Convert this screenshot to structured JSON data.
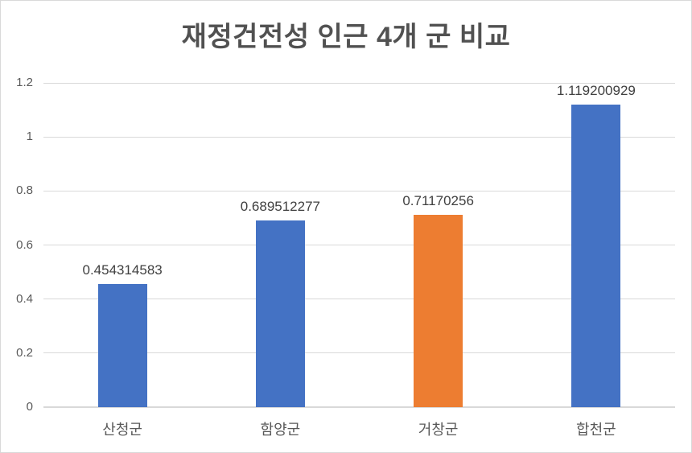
{
  "chart_data": {
    "type": "bar",
    "title": "재정건전성 인근 4개 군 비교",
    "categories": [
      "산청군",
      "함양군",
      "거창군",
      "합천군"
    ],
    "values": [
      0.454314583,
      0.689512277,
      0.71170256,
      1.119200929
    ],
    "data_labels": [
      "0.454314583",
      "0.689512277",
      "0.71170256",
      "1.119200929"
    ],
    "bar_colors": [
      "#4472C4",
      "#4472C4",
      "#ED7D31",
      "#4472C4"
    ],
    "xlabel": "",
    "ylabel": "",
    "ylim": [
      0,
      1.2
    ],
    "ytick_interval": 0.2,
    "yticks": [
      0,
      0.2,
      0.4,
      0.6,
      0.8,
      1,
      1.2
    ],
    "ytick_labels": [
      "0",
      "0.2",
      "0.4",
      "0.6",
      "0.8",
      "1",
      "1.2"
    ],
    "grid": "horizontal",
    "legend": "none"
  },
  "colors": {
    "bar_blue": "#4472C4",
    "bar_orange": "#ED7D31",
    "gridline": "#D9D9D9",
    "axis_line": "#D9D9D9",
    "title_text": "#515151",
    "axis_text": "#595959",
    "data_label_text": "#404040",
    "background": "#FFFFFF",
    "frame_border": "#D9D9D9"
  }
}
